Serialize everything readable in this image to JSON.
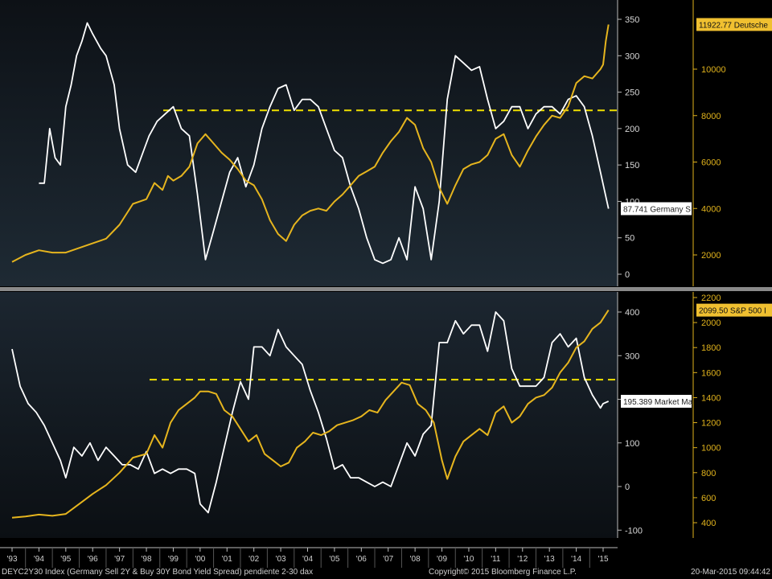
{
  "colors": {
    "white_series": "#ffffff",
    "gold_series": "#e6b51e",
    "dashed": "#f0e000",
    "panel_top": "#121a22",
    "panel_bottom": "#000000",
    "divider": "#8a8a8a"
  },
  "x_axis_labels": [
    "'93",
    "'94",
    "'95",
    "'96",
    "'97",
    "'98",
    "'99",
    "'00",
    "'01",
    "'02",
    "'03",
    "'04",
    "'05",
    "'06",
    "'07",
    "'08",
    "'09",
    "'10",
    "'11",
    "'12",
    "'13",
    "'14",
    "'15"
  ],
  "footer": {
    "left": "DEYC2Y30 Index (Germany Sell 2Y & Buy 30Y Bond Yield Spread) pendiente 2-30 dax",
    "center": "Copyright© 2015 Bloomberg Finance L.P.",
    "right": "20-Mar-2015 09:44:42"
  },
  "chart_data": [
    {
      "type": "line",
      "panel": "top",
      "left_axis": {
        "ticks": [
          "350",
          "300",
          "250",
          "200",
          "150",
          "100",
          "50",
          "0"
        ],
        "range": [
          0,
          350
        ]
      },
      "right_axis": {
        "ticks": [
          "10000",
          "8000",
          "6000",
          "4000",
          "2000"
        ],
        "range": [
          0,
          12000
        ]
      },
      "last_value_tags": {
        "white": "87.741 Germany S",
        "gold": "11922.77 Deutsche"
      },
      "reference_line": {
        "axis": "left",
        "value": 225,
        "style": "dashed"
      },
      "series": [
        {
          "name": "Germany S",
          "axis": "left",
          "color": "#ffffff",
          "x": [
            1994.0,
            1994.2,
            1994.4,
            1994.6,
            1994.8,
            1995.0,
            1995.2,
            1995.4,
            1995.6,
            1995.8,
            1996.0,
            1996.3,
            1996.5,
            1996.8,
            1997.0,
            1997.3,
            1997.6,
            1997.9,
            1998.1,
            1998.4,
            1998.7,
            1999.0,
            1999.3,
            1999.6,
            1999.9,
            2000.2,
            2000.5,
            2000.8,
            2001.1,
            2001.4,
            2001.7,
            2002.0,
            2002.3,
            2002.6,
            2002.9,
            2003.2,
            2003.5,
            2003.8,
            2004.1,
            2004.4,
            2004.7,
            2005.0,
            2005.3,
            2005.6,
            2005.9,
            2006.2,
            2006.5,
            2006.8,
            2007.1,
            2007.4,
            2007.7,
            2008.0,
            2008.3,
            2008.6,
            2008.9,
            2009.2,
            2009.5,
            2009.8,
            2010.1,
            2010.4,
            2010.7,
            2011.0,
            2011.3,
            2011.6,
            2011.9,
            2012.2,
            2012.5,
            2012.8,
            2013.1,
            2013.4,
            2013.7,
            2014.0,
            2014.3,
            2014.6,
            2014.9,
            2015.2
          ],
          "values": [
            125,
            125,
            200,
            160,
            150,
            230,
            260,
            300,
            320,
            345,
            330,
            310,
            300,
            260,
            200,
            150,
            140,
            170,
            190,
            210,
            220,
            230,
            200,
            190,
            110,
            20,
            60,
            100,
            140,
            160,
            120,
            150,
            200,
            230,
            255,
            260,
            225,
            240,
            240,
            230,
            200,
            170,
            160,
            120,
            90,
            50,
            20,
            15,
            20,
            50,
            20,
            120,
            90,
            20,
            100,
            240,
            300,
            290,
            280,
            285,
            240,
            200,
            210,
            230,
            230,
            200,
            220,
            230,
            230,
            220,
            240,
            245,
            230,
            190,
            140,
            90
          ]
        },
        {
          "name": "Deutsche",
          "axis": "right",
          "color": "#e6b51e",
          "x": [
            1993.0,
            1993.5,
            1994.0,
            1994.5,
            1995.0,
            1995.5,
            1996.0,
            1996.5,
            1997.0,
            1997.5,
            1998.0,
            1998.3,
            1998.6,
            1998.8,
            1999.0,
            1999.3,
            1999.6,
            1999.9,
            2000.2,
            2000.5,
            2000.8,
            2001.1,
            2001.4,
            2001.7,
            2002.0,
            2002.3,
            2002.6,
            2002.9,
            2003.2,
            2003.5,
            2003.8,
            2004.1,
            2004.4,
            2004.7,
            2005.0,
            2005.3,
            2005.6,
            2005.9,
            2006.2,
            2006.5,
            2006.8,
            2007.1,
            2007.4,
            2007.7,
            2008.0,
            2008.3,
            2008.6,
            2008.9,
            2009.2,
            2009.5,
            2009.8,
            2010.1,
            2010.4,
            2010.7,
            2011.0,
            2011.3,
            2011.6,
            2011.9,
            2012.2,
            2012.5,
            2012.8,
            2013.1,
            2013.4,
            2013.7,
            2014.0,
            2014.3,
            2014.6,
            2014.9,
            2015.0,
            2015.1,
            2015.2
          ],
          "values": [
            1700,
            2000,
            2200,
            2100,
            2100,
            2300,
            2500,
            2700,
            3300,
            4200,
            4400,
            5100,
            4800,
            5400,
            5200,
            5400,
            5800,
            6800,
            7200,
            6800,
            6400,
            6100,
            5700,
            5200,
            5000,
            4400,
            3500,
            2900,
            2600,
            3300,
            3700,
            3900,
            4000,
            3900,
            4300,
            4600,
            5000,
            5400,
            5600,
            5800,
            6400,
            6900,
            7300,
            7900,
            7600,
            6600,
            6000,
            4900,
            4200,
            5000,
            5700,
            5900,
            6000,
            6300,
            7000,
            7200,
            6300,
            5800,
            6500,
            7100,
            7600,
            8000,
            7900,
            8400,
            9400,
            9700,
            9600,
            10000,
            10200,
            11200,
            11922.77
          ]
        }
      ]
    },
    {
      "type": "line",
      "panel": "bottom",
      "left_axis": {
        "ticks": [
          "400",
          "300",
          "200",
          "100",
          "0",
          "-100"
        ],
        "range": [
          -100,
          420
        ]
      },
      "right_axis": {
        "ticks": [
          "2200",
          "2000",
          "1800",
          "1600",
          "1400",
          "1200",
          "1000",
          "800",
          "600",
          "400"
        ],
        "range": [
          400,
          2200
        ]
      },
      "last_value_tags": {
        "white": "195.389 Market Ma",
        "gold": "2099.50 S&P 500 I"
      },
      "reference_line": {
        "axis": "left",
        "value": 245,
        "style": "dashed"
      },
      "series": [
        {
          "name": "Market Ma",
          "axis": "left",
          "color": "#ffffff",
          "x": [
            1993.0,
            1993.3,
            1993.6,
            1993.9,
            1994.2,
            1994.5,
            1994.8,
            1995.0,
            1995.3,
            1995.6,
            1995.9,
            1996.2,
            1996.5,
            1996.8,
            1997.1,
            1997.4,
            1997.7,
            1998.0,
            1998.3,
            1998.6,
            1998.9,
            1999.2,
            1999.5,
            1999.8,
            2000.0,
            2000.3,
            2000.6,
            2000.9,
            2001.2,
            2001.5,
            2001.8,
            2002.0,
            2002.3,
            2002.6,
            2002.9,
            2003.2,
            2003.5,
            2003.8,
            2004.1,
            2004.4,
            2004.7,
            2005.0,
            2005.3,
            2005.6,
            2005.9,
            2006.2,
            2006.5,
            2006.8,
            2007.1,
            2007.4,
            2007.7,
            2008.0,
            2008.3,
            2008.6,
            2008.9,
            2009.2,
            2009.5,
            2009.8,
            2010.1,
            2010.4,
            2010.7,
            2011.0,
            2011.3,
            2011.6,
            2011.9,
            2012.2,
            2012.5,
            2012.8,
            2013.1,
            2013.4,
            2013.7,
            2014.0,
            2014.3,
            2014.6,
            2014.9,
            2015.0,
            2015.2
          ],
          "values": [
            315,
            230,
            190,
            170,
            140,
            100,
            60,
            20,
            90,
            70,
            100,
            60,
            90,
            70,
            50,
            50,
            40,
            80,
            30,
            40,
            30,
            40,
            40,
            30,
            -40,
            -60,
            10,
            90,
            170,
            240,
            200,
            320,
            320,
            300,
            360,
            320,
            300,
            280,
            220,
            170,
            110,
            40,
            50,
            20,
            20,
            10,
            0,
            10,
            0,
            50,
            100,
            70,
            120,
            140,
            330,
            330,
            380,
            350,
            370,
            370,
            310,
            400,
            380,
            270,
            230,
            230,
            230,
            250,
            330,
            350,
            320,
            340,
            250,
            210,
            180,
            190,
            195.389
          ]
        },
        {
          "name": "S&P 500 I",
          "axis": "right",
          "color": "#e6b51e",
          "x": [
            1993.0,
            1993.5,
            1994.0,
            1994.5,
            1995.0,
            1995.5,
            1996.0,
            1996.5,
            1997.0,
            1997.5,
            1998.0,
            1998.3,
            1998.6,
            1998.9,
            1999.2,
            1999.5,
            1999.8,
            2000.0,
            2000.3,
            2000.6,
            2000.9,
            2001.2,
            2001.5,
            2001.8,
            2002.1,
            2002.4,
            2002.7,
            2003.0,
            2003.3,
            2003.6,
            2003.9,
            2004.2,
            2004.5,
            2004.8,
            2005.1,
            2005.4,
            2005.7,
            2006.0,
            2006.3,
            2006.6,
            2006.9,
            2007.2,
            2007.5,
            2007.8,
            2008.1,
            2008.4,
            2008.7,
            2009.0,
            2009.2,
            2009.5,
            2009.8,
            2010.1,
            2010.4,
            2010.7,
            2011.0,
            2011.3,
            2011.6,
            2011.9,
            2012.2,
            2012.5,
            2012.8,
            2013.1,
            2013.4,
            2013.7,
            2014.0,
            2014.3,
            2014.6,
            2014.9,
            2015.2
          ],
          "values": [
            440,
            450,
            465,
            455,
            470,
            550,
            630,
            700,
            800,
            920,
            950,
            1100,
            1000,
            1200,
            1300,
            1350,
            1400,
            1450,
            1450,
            1430,
            1300,
            1250,
            1150,
            1050,
            1100,
            950,
            900,
            850,
            880,
            1000,
            1050,
            1120,
            1100,
            1130,
            1180,
            1200,
            1220,
            1250,
            1300,
            1280,
            1380,
            1450,
            1520,
            1500,
            1350,
            1300,
            1200,
            900,
            750,
            930,
            1050,
            1100,
            1150,
            1100,
            1280,
            1330,
            1200,
            1250,
            1350,
            1400,
            1420,
            1480,
            1600,
            1680,
            1800,
            1850,
            1950,
            2000,
            2099.5
          ]
        }
      ]
    }
  ]
}
